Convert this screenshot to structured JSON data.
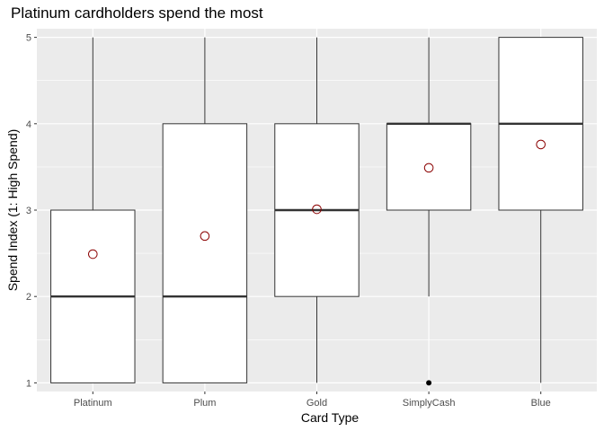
{
  "chart_data": {
    "type": "boxplot",
    "title": "Platinum cardholders spend the most",
    "xlabel": "Card Type",
    "ylabel": "Spend Index (1: High Spend)",
    "ylim": [
      0.9,
      5.1
    ],
    "yticks": [
      1,
      2,
      3,
      4,
      5
    ],
    "grid": true,
    "categories": [
      "Platinum",
      "Plum",
      "Gold",
      "SimplyCash",
      "Blue"
    ],
    "boxes": [
      {
        "category": "Platinum",
        "whisker_low": 1,
        "q1": 1,
        "median": 2,
        "q3": 3,
        "whisker_high": 5,
        "mean": 2.49,
        "outliers": []
      },
      {
        "category": "Plum",
        "whisker_low": 1,
        "q1": 1,
        "median": 2,
        "q3": 4,
        "whisker_high": 5,
        "mean": 2.7,
        "outliers": []
      },
      {
        "category": "Gold",
        "whisker_low": 1,
        "q1": 2,
        "median": 3,
        "q3": 4,
        "whisker_high": 5,
        "mean": 3.01,
        "outliers": []
      },
      {
        "category": "SimplyCash",
        "whisker_low": 2,
        "q1": 3,
        "median": 4,
        "q3": 4,
        "whisker_high": 5,
        "mean": 3.49,
        "outliers": [
          1
        ]
      },
      {
        "category": "Blue",
        "whisker_low": 1,
        "q1": 3,
        "median": 4,
        "q3": 5,
        "whisker_high": 5,
        "mean": 3.76,
        "outliers": []
      }
    ],
    "colors": {
      "panel_background": "#ebebeb",
      "grid_major": "#ffffff",
      "box_fill": "#ffffff",
      "box_line": "#333333",
      "mean_marker": "#8b0000",
      "outlier": "#000000"
    }
  }
}
